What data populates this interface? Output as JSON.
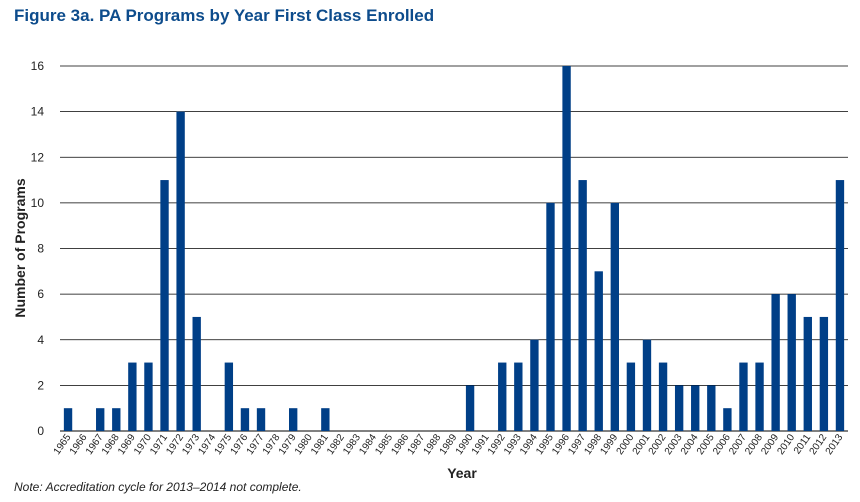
{
  "title": "Figure 3a. PA Programs by Year First Class Enrolled",
  "note": "Note: Accreditation cycle for 2013–2014 not complete.",
  "colors": {
    "bar": "#003f87",
    "title": "#0d4c8c",
    "grid": "#000000"
  },
  "chart_data": {
    "type": "bar",
    "title": "Figure 3a. PA Programs by Year First Class Enrolled",
    "xlabel": "Year",
    "ylabel": "Number of Programs",
    "ylim": [
      0,
      16
    ],
    "yticks": [
      0,
      2,
      4,
      6,
      8,
      10,
      12,
      14,
      16
    ],
    "grid": true,
    "categories": [
      "1965",
      "1966",
      "1967",
      "1968",
      "1969",
      "1970",
      "1971",
      "1972",
      "1973",
      "1974",
      "1975",
      "1976",
      "1977",
      "1978",
      "1979",
      "1980",
      "1981",
      "1982",
      "1983",
      "1984",
      "1985",
      "1986",
      "1987",
      "1988",
      "1989",
      "1990",
      "1991",
      "1992",
      "1993",
      "1994",
      "1995",
      "1996",
      "1997",
      "1998",
      "1999",
      "2000",
      "2001",
      "2002",
      "2003",
      "2004",
      "2005",
      "2006",
      "2007",
      "2008",
      "2009",
      "2010",
      "2011",
      "2012",
      "2013"
    ],
    "values": [
      1,
      0,
      1,
      1,
      3,
      3,
      11,
      14,
      5,
      0,
      3,
      1,
      1,
      0,
      1,
      0,
      1,
      0,
      0,
      0,
      0,
      0,
      0,
      0,
      0,
      2,
      0,
      3,
      3,
      4,
      10,
      16,
      11,
      7,
      10,
      3,
      4,
      3,
      2,
      2,
      2,
      1,
      3,
      3,
      6,
      6,
      5,
      5,
      11
    ]
  }
}
